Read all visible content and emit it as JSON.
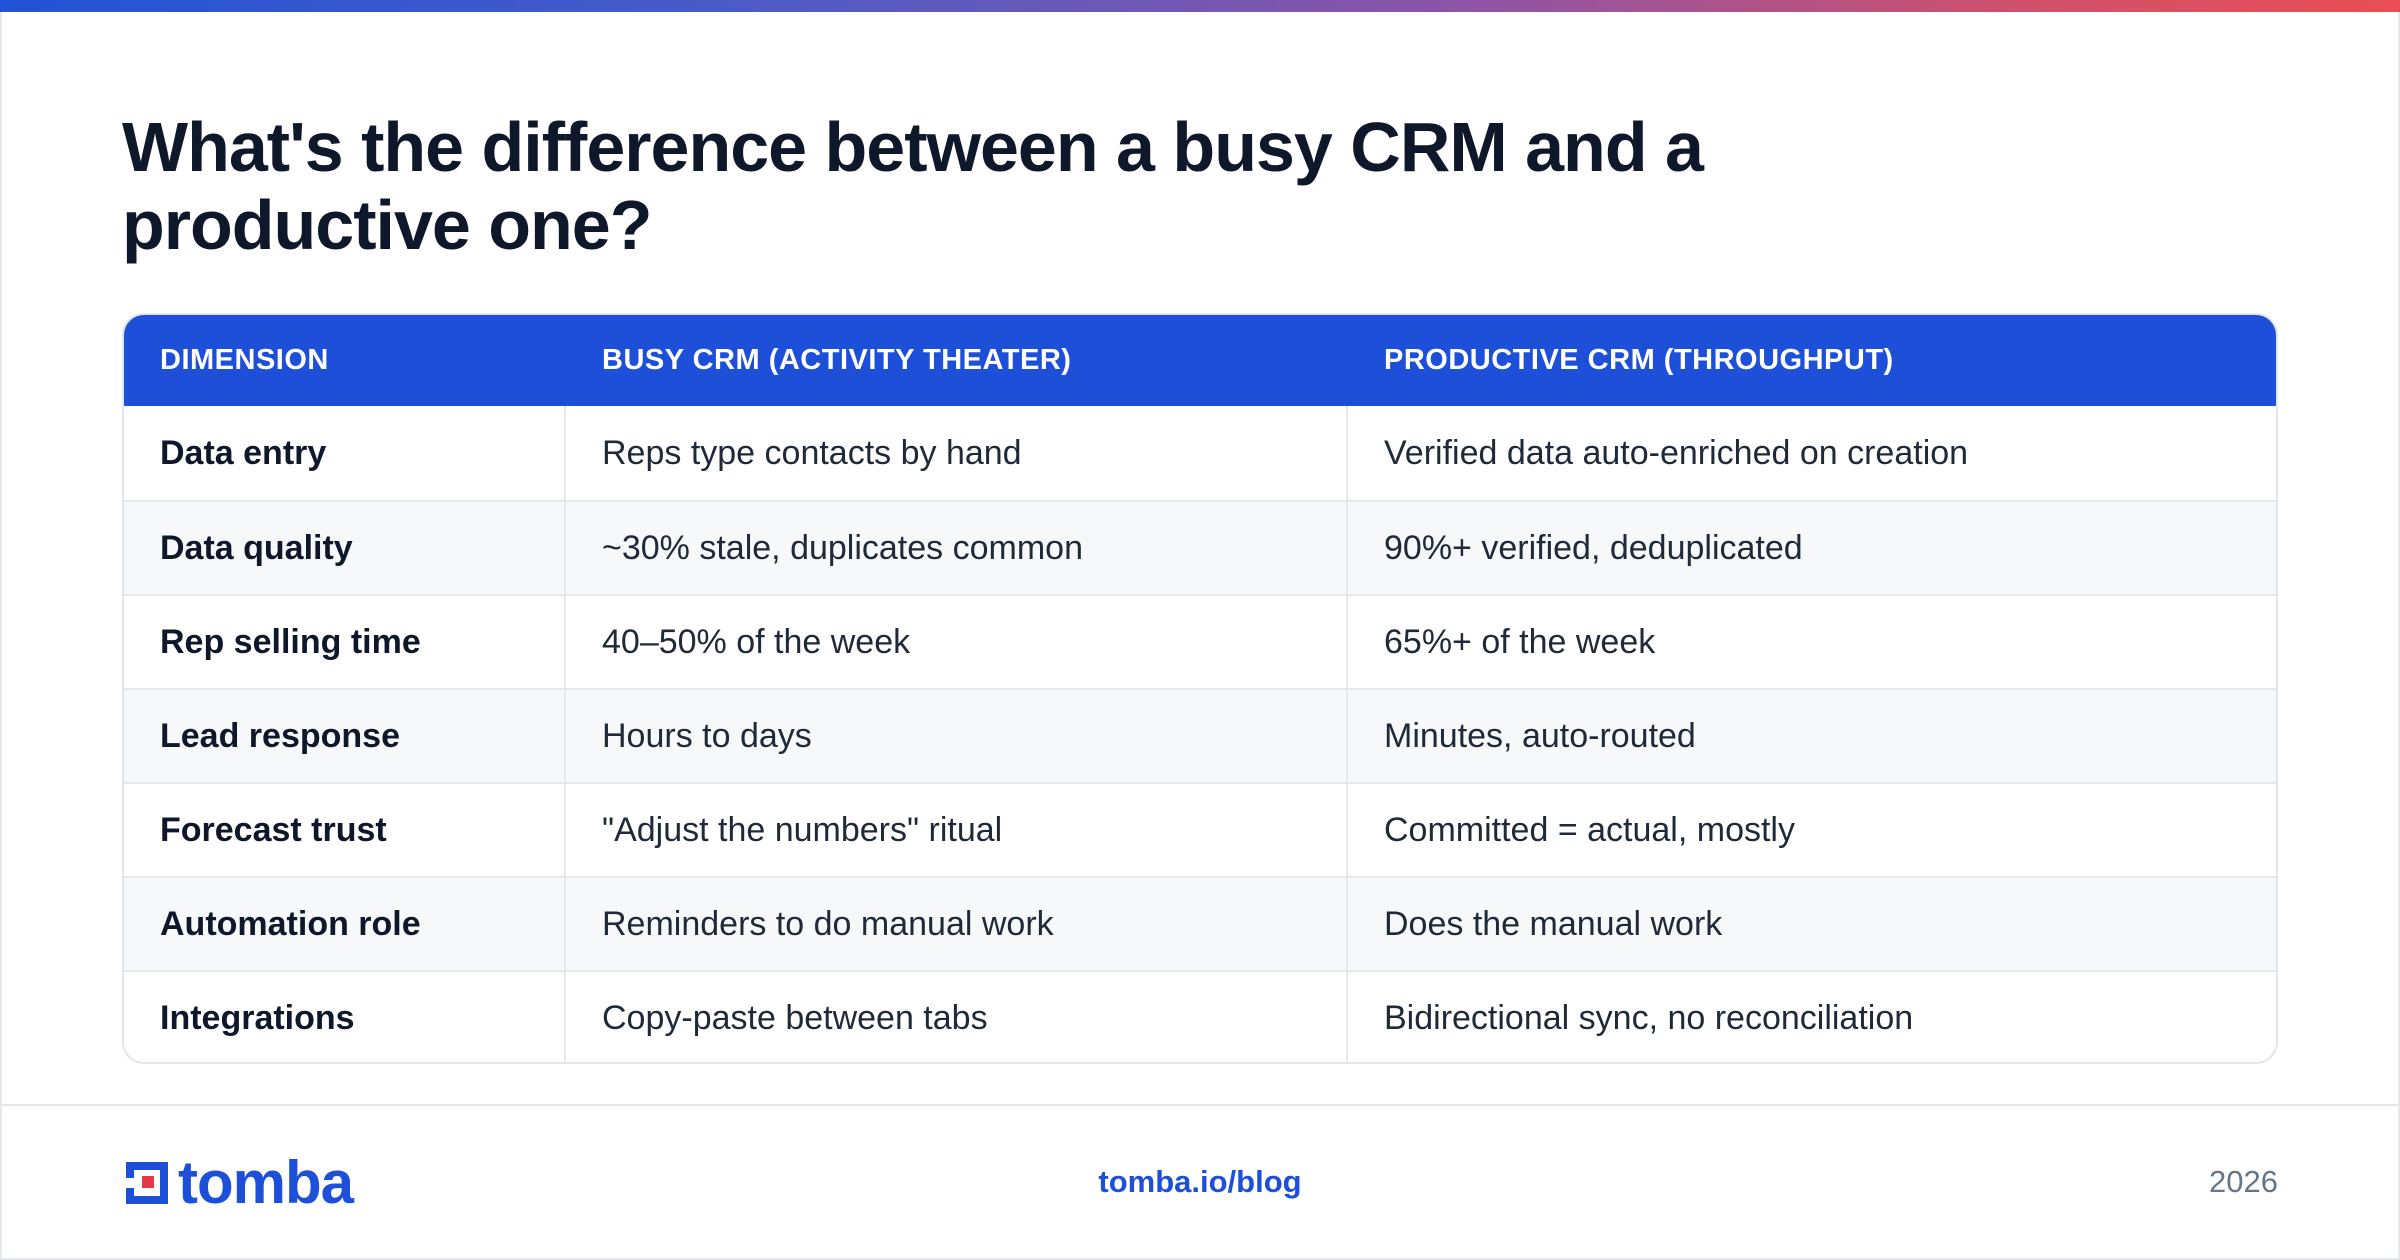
{
  "title": "What's the difference between a busy CRM and a productive one?",
  "table": {
    "headers": [
      "DIMENSION",
      "BUSY CRM (ACTIVITY THEATER)",
      "PRODUCTIVE CRM (THROUGHPUT)"
    ],
    "rows": [
      [
        "Data entry",
        "Reps type contacts by hand",
        "Verified data auto-enriched on creation"
      ],
      [
        "Data quality",
        "~30% stale, duplicates common",
        "90%+ verified, deduplicated"
      ],
      [
        "Rep selling time",
        "40–50% of the week",
        "65%+ of the week"
      ],
      [
        "Lead response",
        "Hours to days",
        "Minutes, auto-routed"
      ],
      [
        "Forecast trust",
        "\"Adjust the numbers\" ritual",
        "Committed = actual, mostly"
      ],
      [
        "Automation role",
        "Reminders to do manual work",
        "Does the manual work"
      ],
      [
        "Integrations",
        "Copy-paste between tabs",
        "Bidirectional sync, no reconciliation"
      ]
    ]
  },
  "footer": {
    "logo_text": "tomba",
    "logo_icon": "tomba-logo-icon",
    "link": "tomba.io/blog",
    "year": "2026"
  },
  "colors": {
    "accent": "#1d4fd8",
    "text": "#0f172a",
    "muted": "#64748b"
  }
}
